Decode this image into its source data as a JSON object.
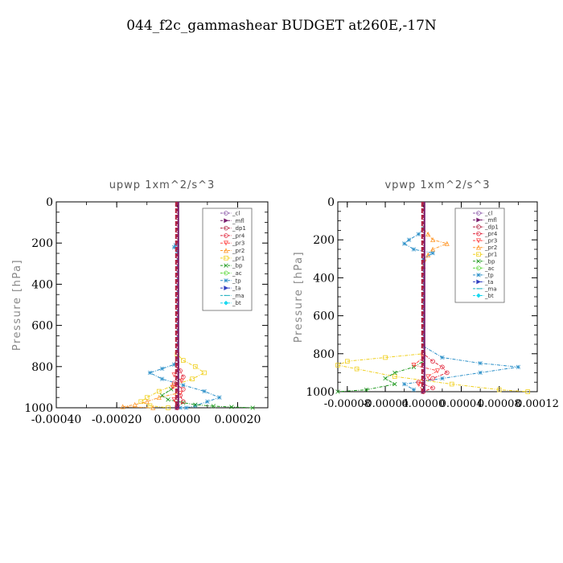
{
  "page": {
    "title": "044_f2c_gammashear  BUDGET at260E,-17N"
  },
  "legend_items": [
    {
      "name": "_cl",
      "color": "#8b59a8",
      "marker": "o"
    },
    {
      "name": "_mfl",
      "color": "#7a1f6e",
      "marker": ">"
    },
    {
      "name": "_dp1",
      "color": "#b22240",
      "marker": "o"
    },
    {
      "name": "_pr4",
      "color": "#e0263c",
      "marker": "o"
    },
    {
      "name": "_pr3",
      "color": "#ff4a4a",
      "marker": "v"
    },
    {
      "name": "_pr2",
      "color": "#ff9a2e",
      "marker": "^"
    },
    {
      "name": "_pr1",
      "color": "#f0d020",
      "marker": "s"
    },
    {
      "name": "_bp",
      "color": "#1f9a1f",
      "marker": "x"
    },
    {
      "name": "_ac",
      "color": "#5ad83a",
      "marker": "o"
    },
    {
      "name": "_tp",
      "color": "#2a8fc8",
      "marker": "*"
    },
    {
      "name": "_ta",
      "color": "#3040c0",
      "marker": ">"
    },
    {
      "name": "_ma",
      "color": "#20b0c0",
      "marker": "-"
    },
    {
      "name": "_bt",
      "color": "#18d8f0",
      "marker": "D"
    }
  ],
  "chart_data": [
    {
      "type": "line",
      "title": "upwp   1xm^2/s^3",
      "ylabel": "Pressure [hPa]",
      "xlim": [
        -0.0004,
        0.0003
      ],
      "ylim": [
        1000,
        0
      ],
      "xticks": [
        "-0.00040",
        "-0.00020",
        "0.00000",
        "0.00020"
      ],
      "xtick_values": [
        -0.0004,
        -0.0002,
        0.0,
        0.0002
      ],
      "yticks": [
        "0",
        "200",
        "400",
        "600",
        "800",
        "1000"
      ],
      "ytick_values": [
        0,
        200,
        400,
        600,
        800,
        1000
      ],
      "legend": "top-right",
      "series": [
        {
          "name": "_tp",
          "color": "#2a8fc8",
          "x": [
            0,
            0,
            -5e-06,
            -1e-05,
            0,
            0,
            -1e-05,
            -5e-05,
            -9e-05,
            -5e-05,
            2e-05,
            9e-05,
            0.00014,
            0.0001,
            6e-05,
            3e-05,
            1e-05
          ],
          "y": [
            0,
            200,
            210,
            220,
            240,
            760,
            790,
            810,
            830,
            860,
            890,
            920,
            950,
            970,
            990,
            1000,
            1000
          ]
        },
        {
          "name": "_pr1",
          "color": "#f0d020",
          "x": [
            0,
            0,
            2e-05,
            6e-05,
            9e-05,
            5e-05,
            -1e-05,
            -6e-05,
            -0.0001,
            -0.00012,
            -9e-05,
            -3e-05
          ],
          "y": [
            0,
            740,
            770,
            800,
            830,
            860,
            890,
            920,
            950,
            970,
            990,
            1000
          ]
        },
        {
          "name": "_pr2",
          "color": "#ff9a2e",
          "x": [
            0,
            0,
            -6e-05,
            -0.0001,
            -0.00014,
            -0.00018,
            -8e-05
          ],
          "y": [
            0,
            930,
            950,
            970,
            985,
            995,
            1000
          ]
        },
        {
          "name": "_bp",
          "color": "#1f9a1f",
          "x": [
            0,
            0,
            -2e-05,
            -5e-05,
            -3e-05,
            2e-05,
            6e-05,
            0.00012,
            0.00018,
            0.00025
          ],
          "y": [
            0,
            880,
            910,
            940,
            960,
            975,
            985,
            992,
            996,
            1000
          ]
        },
        {
          "name": "_pr4",
          "color": "#e0263c",
          "x": [
            0,
            0,
            1e-05,
            2e-05,
            -1e-05,
            2e-05,
            1e-05,
            2e-05,
            0
          ],
          "y": [
            0,
            780,
            820,
            850,
            880,
            910,
            940,
            970,
            1000
          ]
        },
        {
          "name": "_pr3",
          "color": "#ff4a4a",
          "x": [
            0,
            0,
            -1e-05,
            1.5e-05,
            -1.5e-05,
            1e-05,
            -1e-05,
            0
          ],
          "y": [
            0,
            800,
            840,
            870,
            900,
            930,
            960,
            1000
          ]
        },
        {
          "name": "_cl",
          "color": "#8b59a8",
          "x": [
            0,
            0
          ],
          "y": [
            0,
            1000
          ]
        },
        {
          "name": "_mfl",
          "color": "#7a1f6e",
          "x": [
            0,
            0
          ],
          "y": [
            0,
            1000
          ]
        },
        {
          "name": "_dp1",
          "color": "#b22240",
          "x": [
            0,
            0
          ],
          "y": [
            0,
            1000
          ]
        }
      ]
    },
    {
      "type": "line",
      "title": "vpwp   1xm^2/s^3",
      "ylabel": "Pressure [hPa]",
      "xlim": [
        -9e-05,
        0.00012
      ],
      "ylim": [
        1000,
        0
      ],
      "xticks": [
        "-0.00008",
        "-0.00004",
        "0.00000",
        "0.00004",
        "0.00008",
        "0.00012"
      ],
      "xtick_values": [
        -8e-05,
        -4e-05,
        0.0,
        4e-05,
        8e-05,
        0.00012
      ],
      "yticks": [
        "0",
        "200",
        "400",
        "600",
        "800",
        "1000"
      ],
      "ytick_values": [
        0,
        200,
        400,
        600,
        800,
        1000
      ],
      "legend": "top-right",
      "series": [
        {
          "name": "_pr2",
          "color": "#ff9a2e",
          "x": [
            0,
            0,
            5e-06,
            1e-05,
            2.5e-05,
            1e-05,
            5e-06,
            0
          ],
          "y": [
            0,
            140,
            170,
            200,
            220,
            250,
            280,
            340
          ]
        },
        {
          "name": "_pr1",
          "color": "#f0d020",
          "x": [
            0,
            0,
            -4e-05,
            -8e-05,
            -9e-05,
            -7e-05,
            -3e-05,
            3e-05,
            8e-05,
            0.00011
          ],
          "y": [
            0,
            800,
            820,
            840,
            860,
            880,
            920,
            960,
            990,
            1000
          ]
        },
        {
          "name": "_tp",
          "color": "#2a8fc8",
          "x": [
            0,
            0,
            -5e-06,
            -1.5e-05,
            -2e-05,
            -1e-05,
            1e-05,
            0,
            0,
            2e-05,
            6e-05,
            0.0001,
            6e-05,
            2e-05,
            -2e-05,
            -1e-05
          ],
          "y": [
            0,
            140,
            170,
            200,
            220,
            250,
            270,
            300,
            760,
            820,
            850,
            870,
            900,
            930,
            960,
            990
          ]
        },
        {
          "name": "_bp",
          "color": "#1f9a1f",
          "x": [
            0,
            0,
            -1e-05,
            -3e-05,
            -4e-05,
            -3e-05,
            -6e-05,
            -9e-05
          ],
          "y": [
            0,
            840,
            870,
            900,
            930,
            960,
            990,
            1000
          ]
        },
        {
          "name": "_pr4",
          "color": "#e0263c",
          "x": [
            0,
            0,
            1e-05,
            2e-05,
            2.5e-05,
            1e-05,
            -5e-06,
            1e-05,
            0
          ],
          "y": [
            0,
            800,
            840,
            870,
            900,
            930,
            950,
            980,
            1000
          ]
        },
        {
          "name": "_pr3",
          "color": "#ff4a4a",
          "x": [
            0,
            0,
            -1e-05,
            1.5e-05,
            5e-06,
            -5e-06,
            0
          ],
          "y": [
            0,
            820,
            860,
            890,
            920,
            960,
            1000
          ]
        },
        {
          "name": "_cl",
          "color": "#8b59a8",
          "x": [
            0,
            0
          ],
          "y": [
            0,
            1000
          ]
        },
        {
          "name": "_mfl",
          "color": "#7a1f6e",
          "x": [
            0,
            0
          ],
          "y": [
            0,
            1000
          ]
        },
        {
          "name": "_dp1",
          "color": "#b22240",
          "x": [
            0,
            0
          ],
          "y": [
            0,
            1000
          ]
        }
      ]
    }
  ]
}
